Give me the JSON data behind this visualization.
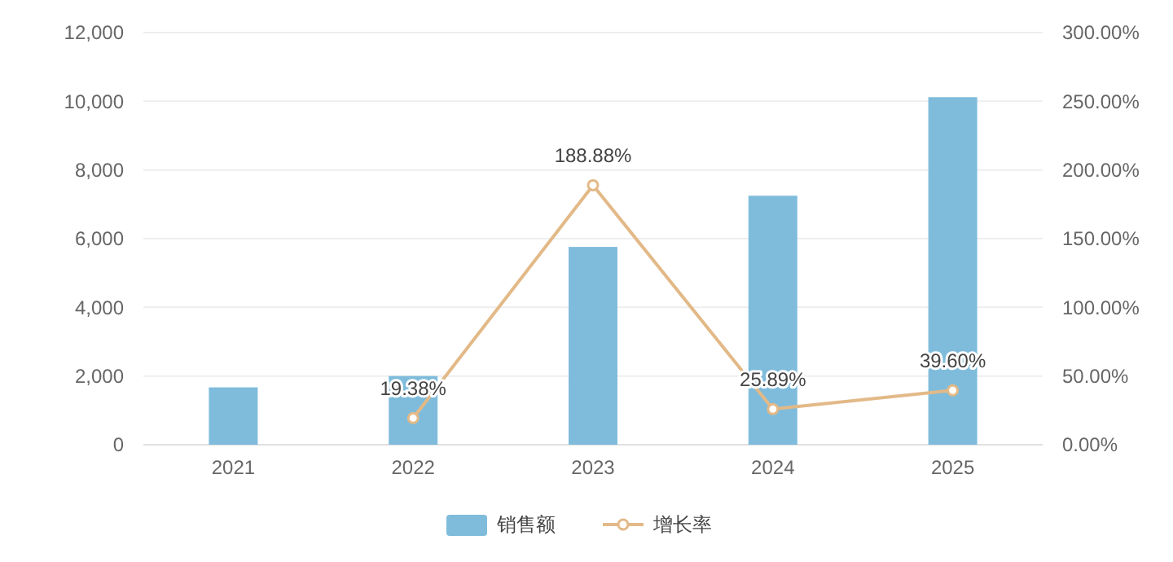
{
  "chart_data": {
    "type": "bar",
    "categories": [
      "2021",
      "2022",
      "2023",
      "2024",
      "2025"
    ],
    "series": [
      {
        "name": "销售额",
        "color": "#7fbcdc",
        "values": [
          1670,
          2000,
          5760,
          7250,
          10120
        ]
      },
      {
        "name": "增长率",
        "type": "line",
        "axis": "y2",
        "color": "#e2b987",
        "values": [
          null,
          19.38,
          188.88,
          25.89,
          39.6
        ],
        "value_labels": [
          null,
          "19.38%",
          "188.88%",
          "25.89%",
          "39.60%"
        ]
      }
    ],
    "ylim": [
      0,
      12000
    ],
    "yticks": [
      0,
      {
        "value": 2000,
        "label": "2,000"
      },
      {
        "value": 4000,
        "label": "4,000"
      },
      {
        "value": 6000,
        "label": "6,000"
      },
      {
        "value": 8000,
        "label": "8,000"
      },
      {
        "value": 10000,
        "label": "10,000"
      },
      {
        "value": 12000,
        "label": "12,000"
      }
    ],
    "y2lim": [
      0,
      300
    ],
    "y2ticks": [
      {
        "value": 0,
        "label": "0.00%"
      },
      {
        "value": 50,
        "label": "50.00%"
      },
      {
        "value": 100,
        "label": "100.00%"
      },
      {
        "value": 150,
        "label": "150.00%"
      },
      {
        "value": 200,
        "label": "200.00%"
      },
      {
        "value": 250,
        "label": "250.00%"
      },
      {
        "value": 300,
        "label": "300.00%"
      }
    ],
    "grid": "y",
    "legend": "bottom",
    "marker": "circle"
  }
}
